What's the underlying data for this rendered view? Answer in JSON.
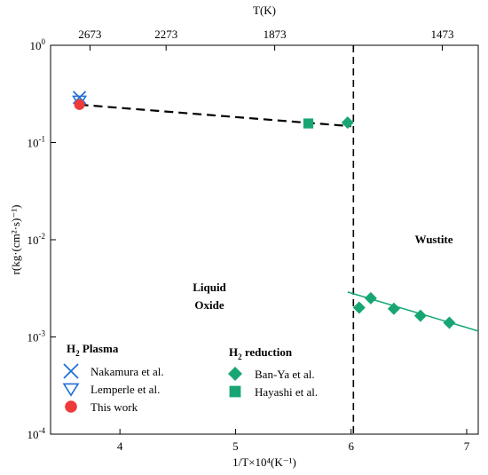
{
  "chart_data": {
    "type": "scatter",
    "xlabel": "1/T×10⁴(K⁻¹)",
    "ylabel": "r(kg·(cm²·s)⁻¹)",
    "top_axis_title": "T(K)",
    "x_range": [
      3.4,
      7.1
    ],
    "y_range": [
      0.0001,
      1
    ],
    "y_scale": "log",
    "x_ticks": [
      {
        "value": 4,
        "label": "4"
      },
      {
        "value": 5,
        "label": "5"
      },
      {
        "value": 6,
        "label": "6"
      },
      {
        "value": 7,
        "label": "7"
      }
    ],
    "y_ticks": [
      {
        "value": 1,
        "base": "10",
        "exp": "0"
      },
      {
        "value": 0.1,
        "base": "10",
        "exp": "-1"
      },
      {
        "value": 0.01,
        "base": "10",
        "exp": "-2"
      },
      {
        "value": 0.001,
        "base": "10",
        "exp": "-3"
      },
      {
        "value": 0.0001,
        "base": "10",
        "exp": "-4"
      }
    ],
    "top_ticks": [
      {
        "temperature": 2673,
        "label": "2673"
      },
      {
        "temperature": 2273,
        "label": "2273"
      },
      {
        "temperature": 1873,
        "label": "1873"
      },
      {
        "temperature": 1473,
        "label": "1473"
      }
    ],
    "region_labels": {
      "liquid_line1": "Liquid",
      "liquid_line2": "Oxide",
      "wustite": "Wustite"
    },
    "legend": {
      "group1_prefix": "H",
      "group1_sub": "2",
      "group1_suffix": " Plasma",
      "group2_prefix": "H",
      "group2_sub": "2",
      "group2_suffix": " reduction"
    },
    "series": [
      {
        "name": "Nakamura et al.",
        "marker": "x",
        "color": "#1f6fd6",
        "label_color": "#000000",
        "points": [
          {
            "x": 3.65,
            "y": 0.29
          }
        ]
      },
      {
        "name": "Lemperle et al.",
        "marker": "triangle-down",
        "color": "#1f6fd6",
        "label_color": "#000000",
        "points": [
          {
            "x": 3.65,
            "y": 0.27
          }
        ]
      },
      {
        "name": "This work",
        "marker": "circle",
        "color": "#ee3a3a",
        "label_color": "#ee3a3a",
        "points": [
          {
            "x": 3.65,
            "y": 0.245
          }
        ]
      },
      {
        "name": "Ban-Ya et al.",
        "marker": "diamond",
        "color": "#17a673",
        "label_color": "#000000",
        "points": [
          {
            "x": 5.97,
            "y": 0.16
          },
          {
            "x": 6.07,
            "y": 0.002
          },
          {
            "x": 6.17,
            "y": 0.0025
          },
          {
            "x": 6.37,
            "y": 0.00195
          },
          {
            "x": 6.6,
            "y": 0.00165
          },
          {
            "x": 6.85,
            "y": 0.0014
          }
        ]
      },
      {
        "name": "Hayashi et al.",
        "marker": "square",
        "color": "#17a673",
        "label_color": "#000000",
        "points": [
          {
            "x": 5.63,
            "y": 0.157
          }
        ]
      }
    ],
    "dashed_trend": [
      {
        "x": 3.65,
        "y": 0.245
      },
      {
        "x": 6.0,
        "y": 0.147
      }
    ],
    "solid_trend": [
      {
        "x": 5.97,
        "y": 0.0029
      },
      {
        "x": 7.1,
        "y": 0.00115
      }
    ],
    "phase_boundary_x": 6.02,
    "colors": {
      "trend_dashed": "#000000",
      "trend_solid": "#17a673",
      "boundary": "#000000"
    }
  }
}
